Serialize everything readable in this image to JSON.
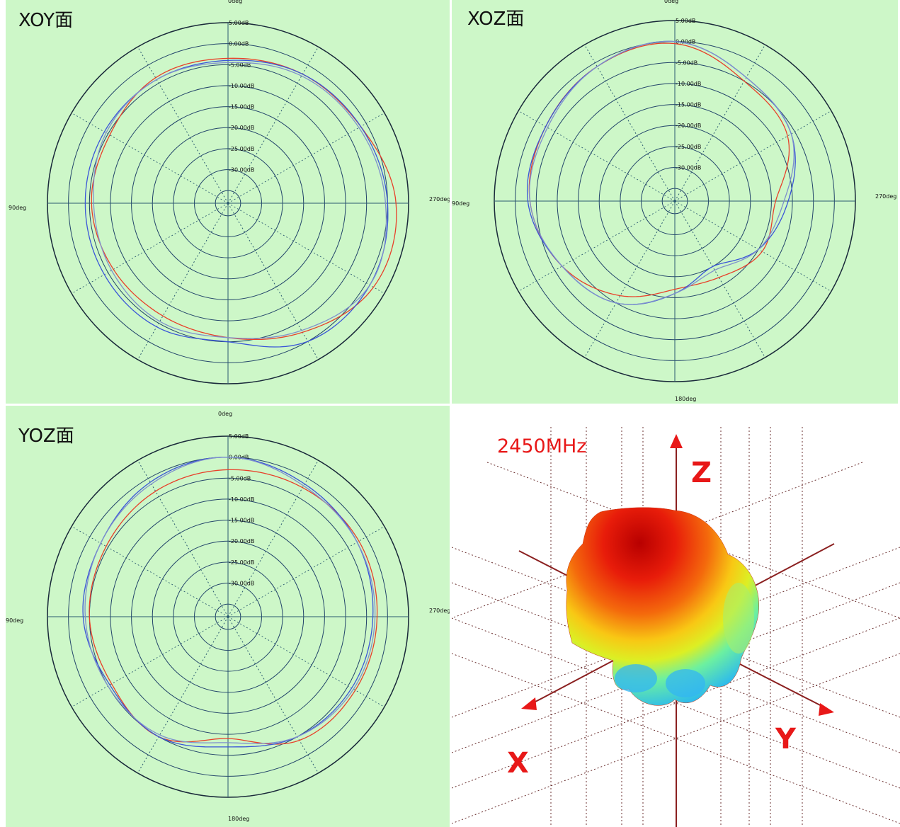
{
  "chart_data": [
    {
      "type": "polar",
      "title": "XOY面",
      "ring_labels": [
        "5.00dB",
        "0.00dB",
        "-5.00dB",
        "-10.00dB",
        "-15.00dB",
        "-20.00dB",
        "-25.00dB",
        "-30.00dB"
      ],
      "angle_labels": {
        "top": "0deg",
        "left": "90deg",
        "right": "270deg",
        "bottom": "180deg"
      },
      "rlim": [
        -35,
        5
      ],
      "angles_deg": [
        0,
        30,
        60,
        90,
        120,
        150,
        180,
        210,
        240,
        270,
        300,
        330
      ],
      "series": [
        {
          "color": "#e8402a",
          "values_db": [
            -3.5,
            -3.5,
            -5.5,
            -5.5,
            -6.5,
            -7,
            -6,
            -2.5,
            2,
            2,
            -1.5,
            -2.5
          ]
        },
        {
          "color": "#3a55d8",
          "values_db": [
            -4,
            -4,
            -4,
            -4,
            -4,
            -4,
            -5,
            0,
            1,
            0,
            -1.5,
            -2.5
          ]
        },
        {
          "color": "#7f90cc",
          "values_db": [
            -4.5,
            -4,
            -4.5,
            -6,
            -6,
            -5.5,
            -6,
            -3,
            1,
            -0.5,
            -2,
            -3
          ]
        }
      ]
    },
    {
      "type": "polar",
      "title": "XOZ面",
      "ring_labels": [
        "5.00dB",
        "0.00dB",
        "-5.00dB",
        "-10.00dB",
        "-15.00dB",
        "-20.00dB",
        "-25.00dB",
        "-30.00dB"
      ],
      "angle_labels": {
        "top": "0deg",
        "left": "90deg",
        "right": "270deg",
        "bottom": "180deg"
      },
      "rlim": [
        -35,
        5
      ],
      "angles_deg": [
        0,
        30,
        60,
        90,
        120,
        150,
        180,
        210,
        240,
        270,
        300,
        330
      ],
      "series": [
        {
          "color": "#e8402a",
          "values_db": [
            -0.5,
            -1,
            -2.5,
            -3.5,
            -7,
            -12,
            -17,
            -17,
            -14,
            -14,
            -7,
            -5
          ]
        },
        {
          "color": "#3a55d8",
          "values_db": [
            0,
            -1,
            -2.5,
            -3,
            -7,
            -10,
            -16,
            -20,
            -15,
            -11,
            -6,
            -4
          ]
        },
        {
          "color": "#7f90cc",
          "values_db": [
            0,
            -1,
            -3,
            -3.5,
            -7,
            -10,
            -16,
            -19,
            -15,
            -12,
            -6,
            -4
          ]
        }
      ]
    },
    {
      "type": "polar",
      "title": "YOZ面",
      "ring_labels": [
        "5.00dB",
        "0.00dB",
        "-5.00dB",
        "-10.00dB",
        "-15.00dB",
        "-20.00dB",
        "-25.00dB",
        "-30.00dB"
      ],
      "angle_labels": {
        "top": "0deg",
        "left": "90deg",
        "right": "270deg",
        "bottom": "180deg"
      },
      "rlim": [
        -35,
        5
      ],
      "angles_deg": [
        0,
        30,
        60,
        90,
        120,
        150,
        180,
        210,
        240,
        270,
        300,
        330
      ],
      "series": [
        {
          "color": "#e8402a",
          "values_db": [
            -3,
            -3.5,
            -4.5,
            -5,
            -6,
            -5,
            -9,
            -4,
            -3,
            -2.5,
            -2,
            -2.5
          ]
        },
        {
          "color": "#3a55d8",
          "values_db": [
            0,
            -1,
            -3,
            -3.5,
            -5.5,
            -5,
            -7,
            -5,
            -4,
            -3.5,
            -2.5,
            -1.5
          ]
        },
        {
          "color": "#7f90cc",
          "values_db": [
            0,
            -1.5,
            -3,
            -4,
            -5,
            -5.5,
            -8,
            -5,
            -3.5,
            -3,
            -2.5,
            -2
          ]
        }
      ]
    }
  ],
  "pattern_3d": {
    "frequency_label": "2450MHz",
    "axis_labels": {
      "x": "X",
      "y": "Y",
      "z": "Z"
    }
  }
}
